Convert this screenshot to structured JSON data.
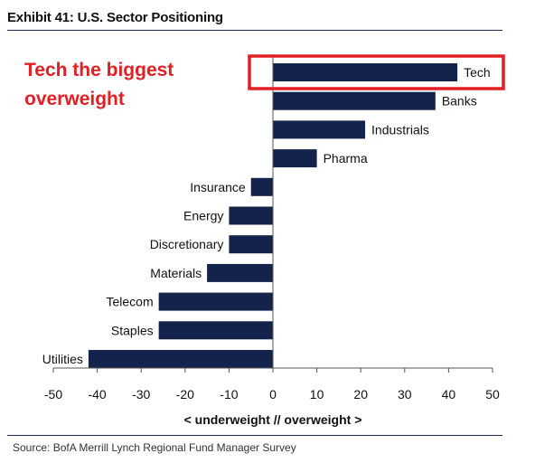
{
  "header": {
    "title": "Exhibit 41: U.S. Sector Positioning"
  },
  "annotation": {
    "line1": "Tech the biggest",
    "line2": "overweight",
    "color": "#e31e24"
  },
  "source": "Source: BofA Merrill Lynch Regional Fund Manager Survey",
  "colors": {
    "bar": "#14234b",
    "highlight": "#e31e24",
    "rule": "#1c2e57"
  },
  "chart_data": {
    "type": "bar",
    "orientation": "horizontal",
    "categories": [
      "Tech",
      "Banks",
      "Industrials",
      "Pharma",
      "Insurance",
      "Energy",
      "Discretionary",
      "Materials",
      "Telecom",
      "Staples",
      "Utilities"
    ],
    "values": [
      42,
      37,
      21,
      10,
      -5,
      -10,
      -10,
      -15,
      -26,
      -26,
      -42
    ],
    "xlabel": "< underweight // overweight >",
    "ylabel": "",
    "xlim": [
      -50,
      50
    ],
    "xticks": [
      -50,
      -40,
      -30,
      -20,
      -10,
      0,
      10,
      20,
      30,
      40,
      50
    ],
    "highlighted_category": "Tech",
    "grid": false,
    "legend": "none"
  }
}
